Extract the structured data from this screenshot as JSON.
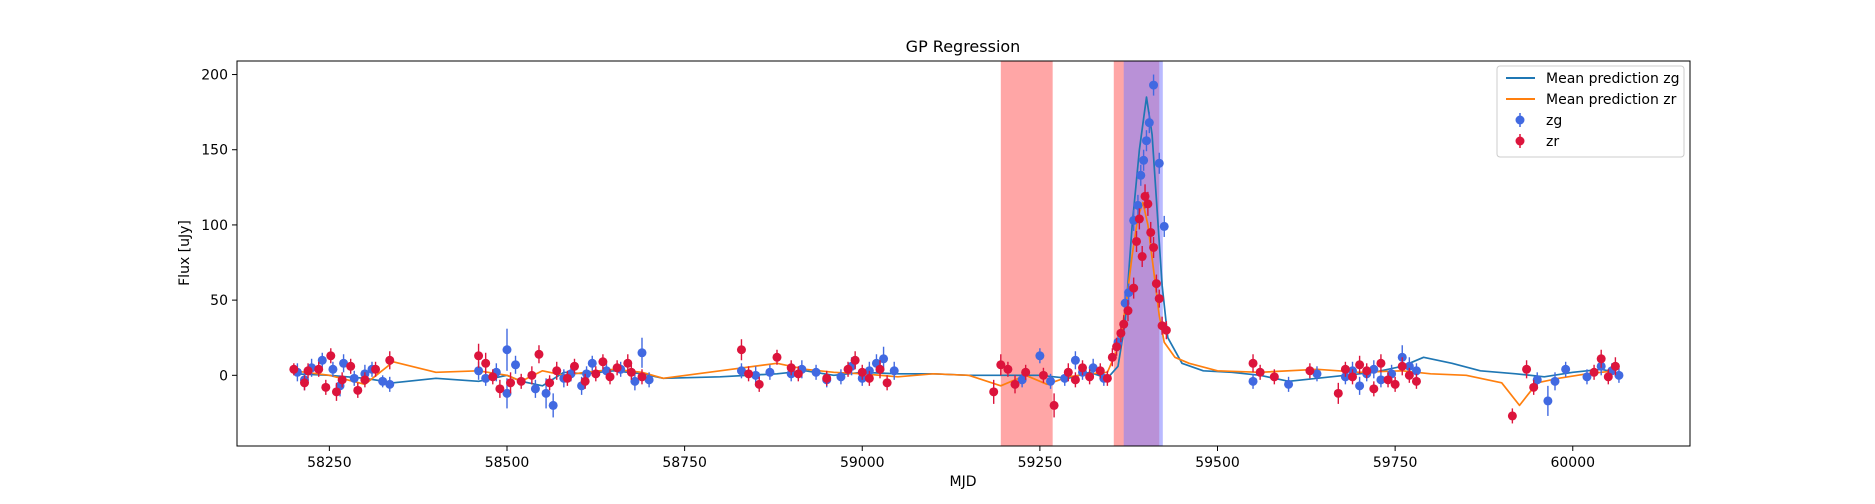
{
  "chart_data": {
    "type": "scatter",
    "title": "GP Regression",
    "xlabel": "MJD",
    "ylabel": "Flux [uJy]",
    "xlim": [
      58120,
      60165
    ],
    "ylim": [
      -47,
      209
    ],
    "xticks": [
      58250,
      58500,
      58750,
      59000,
      59250,
      59500,
      59750,
      60000
    ],
    "yticks": [
      0,
      50,
      100,
      150,
      200
    ],
    "legend_position": "top-right",
    "colors": {
      "zg_points": "#4169e1",
      "zr_points": "#dc143c",
      "mean_zg": "#1f77b4",
      "mean_zr": "#ff7f0e",
      "span_red": "#ff6b6b",
      "span_blue": "#8080ff"
    },
    "shaded_regions": [
      {
        "x0": 59195,
        "x1": 59268,
        "color": "red"
      },
      {
        "x0": 59354,
        "x1": 59418,
        "color": "red"
      },
      {
        "x0": 59368,
        "x1": 59423,
        "color": "blue"
      }
    ],
    "series": [
      {
        "name": "Mean prediction zg",
        "kind": "line",
        "x": [
          58200,
          58250,
          58300,
          58340,
          58400,
          58460,
          58500,
          58520,
          58550,
          58580,
          58610,
          58650,
          58690,
          58720,
          58800,
          58880,
          58920,
          58960,
          59000,
          59050,
          59100,
          59150,
          59200,
          59250,
          59290,
          59320,
          59345,
          59360,
          59370,
          59380,
          59390,
          59400,
          59408,
          59415,
          59422,
          59430,
          59450,
          59480,
          59520,
          59560,
          59600,
          59640,
          59680,
          59720,
          59760,
          59790,
          59830,
          59870,
          59920,
          59960,
          60000,
          60040,
          60060
        ],
        "y": [
          1,
          0,
          -2,
          -5,
          -2,
          -4,
          0,
          -4,
          -7,
          2,
          1,
          3,
          1,
          -2,
          -1,
          1,
          3,
          0,
          2,
          1,
          1,
          0,
          0,
          0,
          -2,
          2,
          -2,
          6,
          35,
          100,
          150,
          185,
          160,
          110,
          60,
          25,
          8,
          3,
          2,
          0,
          -4,
          -2,
          0,
          2,
          6,
          12,
          8,
          3,
          1,
          -1,
          2,
          4,
          2
        ]
      },
      {
        "name": "Mean prediction zr",
        "kind": "line",
        "x": [
          58200,
          58250,
          58300,
          58340,
          58400,
          58460,
          58500,
          58520,
          58550,
          58580,
          58610,
          58650,
          58690,
          58720,
          58800,
          58880,
          58920,
          58960,
          59000,
          59050,
          59100,
          59150,
          59195,
          59230,
          59260,
          59290,
          59320,
          59345,
          59358,
          59365,
          59372,
          59380,
          59388,
          59395,
          59402,
          59410,
          59418,
          59425,
          59440,
          59460,
          59500,
          59560,
          59640,
          59700,
          59760,
          59800,
          59850,
          59900,
          59925,
          59950,
          59980,
          60020,
          60060
        ],
        "y": [
          3,
          0,
          -6,
          9,
          2,
          3,
          0,
          -4,
          3,
          0,
          2,
          4,
          2,
          -2,
          3,
          8,
          4,
          2,
          1,
          -1,
          1,
          0,
          -7,
          0,
          -6,
          -1,
          1,
          2,
          16,
          30,
          50,
          80,
          105,
          115,
          100,
          70,
          40,
          22,
          12,
          8,
          3,
          2,
          4,
          2,
          3,
          1,
          0,
          -5,
          -20,
          -5,
          -2,
          1,
          3
        ]
      },
      {
        "name": "zg",
        "kind": "points",
        "points": [
          [
            58205,
            2,
            6
          ],
          [
            58215,
            -3,
            7
          ],
          [
            58225,
            5,
            6
          ],
          [
            58240,
            10,
            5
          ],
          [
            58255,
            4,
            5
          ],
          [
            58265,
            -7,
            7
          ],
          [
            58270,
            8,
            6
          ],
          [
            58285,
            -2,
            5
          ],
          [
            58300,
            1,
            6
          ],
          [
            58310,
            4,
            5
          ],
          [
            58325,
            -4,
            4
          ],
          [
            58335,
            -6,
            5
          ],
          [
            58460,
            3,
            6
          ],
          [
            58470,
            -2,
            5
          ],
          [
            58485,
            2,
            6
          ],
          [
            58500,
            -12,
            10
          ],
          [
            58500,
            17,
            14
          ],
          [
            58512,
            7,
            6
          ],
          [
            58540,
            -9,
            6
          ],
          [
            58555,
            -12,
            10
          ],
          [
            58565,
            -20,
            8
          ],
          [
            58580,
            -2,
            6
          ],
          [
            58590,
            1,
            5
          ],
          [
            58605,
            -7,
            6
          ],
          [
            58612,
            1,
            5
          ],
          [
            58620,
            8,
            5
          ],
          [
            58640,
            3,
            5
          ],
          [
            58660,
            4,
            5
          ],
          [
            58680,
            -4,
            6
          ],
          [
            58690,
            15,
            10
          ],
          [
            58700,
            -3,
            5
          ],
          [
            58830,
            3,
            5
          ],
          [
            58850,
            0,
            6
          ],
          [
            58870,
            2,
            5
          ],
          [
            58900,
            1,
            5
          ],
          [
            58915,
            4,
            6
          ],
          [
            58935,
            2,
            5
          ],
          [
            58950,
            -3,
            5
          ],
          [
            58970,
            -1,
            5
          ],
          [
            58985,
            6,
            6
          ],
          [
            59000,
            -2,
            5
          ],
          [
            59010,
            3,
            6
          ],
          [
            59020,
            8,
            6
          ],
          [
            59030,
            11,
            8
          ],
          [
            59045,
            3,
            6
          ],
          [
            59225,
            -3,
            5
          ],
          [
            59250,
            13,
            5
          ],
          [
            59265,
            -4,
            5
          ],
          [
            59285,
            -2,
            5
          ],
          [
            59300,
            10,
            6
          ],
          [
            59310,
            2,
            5
          ],
          [
            59325,
            5,
            6
          ],
          [
            59340,
            -2,
            5
          ],
          [
            59360,
            22,
            6
          ],
          [
            59370,
            48,
            6
          ],
          [
            59375,
            55,
            6
          ],
          [
            59382,
            103,
            7
          ],
          [
            59388,
            113,
            7
          ],
          [
            59392,
            133,
            7
          ],
          [
            59396,
            143,
            7
          ],
          [
            59400,
            156,
            7
          ],
          [
            59404,
            168,
            7
          ],
          [
            59410,
            193,
            7
          ],
          [
            59418,
            141,
            7
          ],
          [
            59425,
            99,
            7
          ],
          [
            59550,
            -4,
            5
          ],
          [
            59600,
            -6,
            5
          ],
          [
            59640,
            1,
            5
          ],
          [
            59680,
            -1,
            5
          ],
          [
            59690,
            3,
            6
          ],
          [
            59700,
            -7,
            6
          ],
          [
            59710,
            1,
            5
          ],
          [
            59720,
            4,
            6
          ],
          [
            59730,
            -3,
            5
          ],
          [
            59745,
            1,
            6
          ],
          [
            59760,
            12,
            8
          ],
          [
            59770,
            6,
            6
          ],
          [
            59780,
            3,
            5
          ],
          [
            59950,
            -3,
            5
          ],
          [
            59965,
            -17,
            10
          ],
          [
            59975,
            -4,
            6
          ],
          [
            59990,
            4,
            5
          ],
          [
            60020,
            -1,
            5
          ],
          [
            60040,
            6,
            6
          ],
          [
            60055,
            3,
            5
          ],
          [
            60065,
            0,
            5
          ]
        ]
      },
      {
        "name": "zr",
        "kind": "points",
        "points": [
          [
            58200,
            4,
            4
          ],
          [
            58215,
            -5,
            5
          ],
          [
            58220,
            3,
            5
          ],
          [
            58235,
            4,
            5
          ],
          [
            58245,
            -8,
            5
          ],
          [
            58252,
            13,
            5
          ],
          [
            58260,
            -11,
            6
          ],
          [
            58268,
            -3,
            5
          ],
          [
            58280,
            6,
            5
          ],
          [
            58290,
            -10,
            5
          ],
          [
            58300,
            -3,
            5
          ],
          [
            58315,
            4,
            5
          ],
          [
            58335,
            10,
            6
          ],
          [
            58460,
            13,
            8
          ],
          [
            58470,
            8,
            7
          ],
          [
            58480,
            -1,
            5
          ],
          [
            58490,
            -9,
            6
          ],
          [
            58505,
            -5,
            7
          ],
          [
            58520,
            -4,
            5
          ],
          [
            58535,
            0,
            6
          ],
          [
            58545,
            14,
            6
          ],
          [
            58560,
            -5,
            5
          ],
          [
            58570,
            3,
            6
          ],
          [
            58585,
            -2,
            5
          ],
          [
            58595,
            6,
            5
          ],
          [
            58610,
            -4,
            5
          ],
          [
            58625,
            1,
            5
          ],
          [
            58635,
            9,
            5
          ],
          [
            58645,
            -1,
            5
          ],
          [
            58655,
            5,
            5
          ],
          [
            58670,
            8,
            6
          ],
          [
            58675,
            2,
            5
          ],
          [
            58690,
            -1,
            5
          ],
          [
            58830,
            17,
            7
          ],
          [
            58840,
            1,
            5
          ],
          [
            58855,
            -6,
            5
          ],
          [
            58880,
            12,
            5
          ],
          [
            58900,
            5,
            5
          ],
          [
            58910,
            1,
            5
          ],
          [
            58950,
            -2,
            5
          ],
          [
            58980,
            4,
            5
          ],
          [
            58990,
            10,
            6
          ],
          [
            59000,
            2,
            5
          ],
          [
            59010,
            -2,
            5
          ],
          [
            59025,
            4,
            6
          ],
          [
            59035,
            -5,
            5
          ],
          [
            59185,
            -11,
            8
          ],
          [
            59195,
            7,
            7
          ],
          [
            59205,
            4,
            5
          ],
          [
            59215,
            -6,
            6
          ],
          [
            59230,
            2,
            5
          ],
          [
            59255,
            0,
            5
          ],
          [
            59270,
            -20,
            8
          ],
          [
            59290,
            2,
            6
          ],
          [
            59300,
            -3,
            5
          ],
          [
            59310,
            5,
            5
          ],
          [
            59320,
            -1,
            5
          ],
          [
            59335,
            3,
            5
          ],
          [
            59345,
            -2,
            5
          ],
          [
            59352,
            12,
            6
          ],
          [
            59358,
            19,
            6
          ],
          [
            59364,
            28,
            6
          ],
          [
            59368,
            34,
            6
          ],
          [
            59374,
            43,
            7
          ],
          [
            59382,
            58,
            7
          ],
          [
            59386,
            89,
            7
          ],
          [
            59390,
            104,
            7
          ],
          [
            59394,
            79,
            7
          ],
          [
            59398,
            119,
            8
          ],
          [
            59402,
            114,
            8
          ],
          [
            59406,
            95,
            7
          ],
          [
            59410,
            85,
            7
          ],
          [
            59414,
            61,
            6
          ],
          [
            59418,
            51,
            6
          ],
          [
            59422,
            33,
            6
          ],
          [
            59428,
            30,
            6
          ],
          [
            59550,
            8,
            6
          ],
          [
            59560,
            2,
            5
          ],
          [
            59580,
            -1,
            5
          ],
          [
            59630,
            3,
            5
          ],
          [
            59670,
            -12,
            7
          ],
          [
            59680,
            4,
            5
          ],
          [
            59690,
            -1,
            5
          ],
          [
            59700,
            7,
            6
          ],
          [
            59710,
            3,
            5
          ],
          [
            59720,
            -9,
            5
          ],
          [
            59730,
            8,
            6
          ],
          [
            59740,
            -3,
            5
          ],
          [
            59750,
            -6,
            5
          ],
          [
            59760,
            6,
            6
          ],
          [
            59770,
            0,
            5
          ],
          [
            59780,
            -4,
            5
          ],
          [
            59915,
            -27,
            5
          ],
          [
            59935,
            4,
            6
          ],
          [
            59945,
            -8,
            5
          ],
          [
            60030,
            2,
            5
          ],
          [
            60040,
            11,
            6
          ],
          [
            60050,
            -1,
            5
          ],
          [
            60060,
            6,
            6
          ]
        ]
      }
    ]
  }
}
